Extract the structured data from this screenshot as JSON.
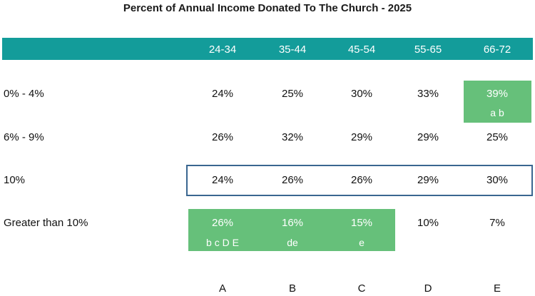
{
  "chart_data": {
    "type": "table",
    "title": "Percent of Annual Income Donated To The Church -  2025",
    "columns": [
      "24-34",
      "35-44",
      "45-54",
      "55-65",
      "66-72"
    ],
    "column_letters": [
      "A",
      "B",
      "C",
      "D",
      "E"
    ],
    "rows": [
      {
        "label": "0% - 4%",
        "values": [
          "24%",
          "25%",
          "30%",
          "33%",
          "39%"
        ],
        "sig": [
          "",
          "",
          "",
          "",
          "a b"
        ]
      },
      {
        "label": "6% - 9%",
        "values": [
          "26%",
          "32%",
          "29%",
          "29%",
          "25%"
        ],
        "sig": [
          "",
          "",
          "",
          "",
          ""
        ]
      },
      {
        "label": "10%",
        "values": [
          "24%",
          "26%",
          "26%",
          "29%",
          "30%"
        ],
        "sig": [
          "",
          "",
          "",
          "",
          ""
        ]
      },
      {
        "label": "Greater than 10%",
        "values": [
          "26%",
          "16%",
          "15%",
          "10%",
          "7%"
        ],
        "sig": [
          "b c D E",
          "de",
          "e",
          "",
          ""
        ]
      }
    ],
    "highlight_color": "#66c07a",
    "header_color": "#139c9a",
    "outline_color": "#3a6690"
  }
}
